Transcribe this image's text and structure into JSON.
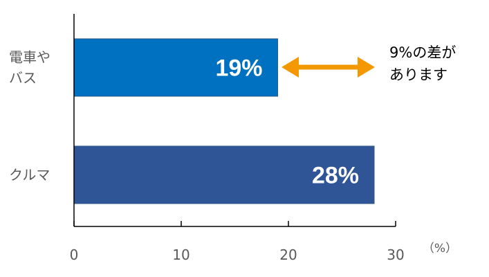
{
  "chart_data": {
    "type": "bar",
    "orientation": "horizontal",
    "categories": [
      {
        "lines": [
          "電車や",
          "バス"
        ]
      },
      {
        "lines": [
          "クルマ"
        ]
      }
    ],
    "values": [
      19,
      28
    ],
    "data_labels": [
      "19%",
      "28%"
    ],
    "colors": [
      "#0070c0",
      "#2f5597"
    ],
    "xlim": [
      0,
      30
    ],
    "x_ticks": [
      0,
      10,
      20,
      30
    ],
    "x_tick_labels": [
      "0",
      "10",
      "20",
      "30"
    ],
    "unit_label": "（%）",
    "grid": false,
    "annotation": {
      "lines": [
        "9%の差が",
        "あります"
      ],
      "arrow_color": "#f39800"
    }
  }
}
